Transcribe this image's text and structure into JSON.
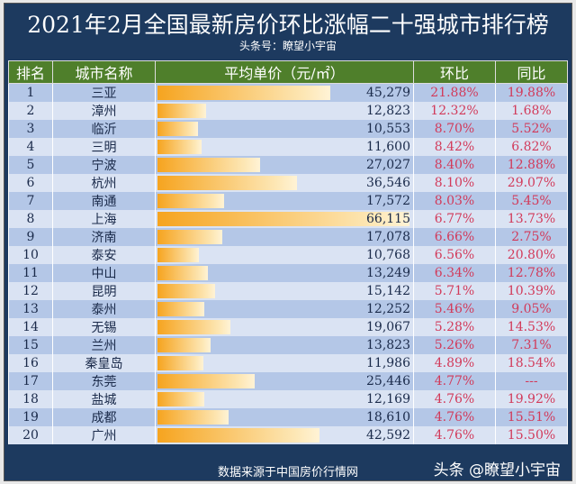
{
  "title": "2021年2月全国最新房价环比涨幅二十强城市排行榜",
  "subtitle": "头条号：瞭望小宇宙",
  "footer": {
    "source": "数据来源于中国房价行情网",
    "watermark": "头条 @瞭望小宇宙"
  },
  "colors": {
    "title_bg": "#1d3a5f",
    "header_bg": "#4f7f2b",
    "row_odd": "#b4c7e7",
    "row_even": "#dae3f3",
    "bar": "#f6a41f",
    "pct_text": "#d23a5a"
  },
  "chart_data": {
    "type": "table",
    "columns": [
      "排名",
      "城市名称",
      "平均单价（元/㎡）",
      "环比",
      "同比"
    ],
    "bar_column": "平均单价（元/㎡）",
    "rows": [
      [
        "1",
        "三亚",
        "45,279",
        "21.88%",
        "19.88%"
      ],
      [
        "2",
        "漳州",
        "12,823",
        "12.32%",
        "1.68%"
      ],
      [
        "3",
        "临沂",
        "10,553",
        "8.70%",
        "5.52%"
      ],
      [
        "4",
        "三明",
        "11,600",
        "8.42%",
        "6.82%"
      ],
      [
        "5",
        "宁波",
        "27,027",
        "8.40%",
        "12.88%"
      ],
      [
        "6",
        "杭州",
        "36,546",
        "8.10%",
        "29.07%"
      ],
      [
        "7",
        "南通",
        "17,572",
        "8.03%",
        "5.45%"
      ],
      [
        "8",
        "上海",
        "66,115",
        "6.77%",
        "13.73%"
      ],
      [
        "9",
        "济南",
        "17,078",
        "6.66%",
        "2.75%"
      ],
      [
        "10",
        "泰安",
        "10,768",
        "6.56%",
        "20.80%"
      ],
      [
        "11",
        "中山",
        "13,249",
        "6.34%",
        "12.78%"
      ],
      [
        "12",
        "昆明",
        "15,142",
        "5.71%",
        "10.39%"
      ],
      [
        "13",
        "泰州",
        "12,252",
        "5.46%",
        "9.05%"
      ],
      [
        "14",
        "无锡",
        "19,067",
        "5.28%",
        "14.53%"
      ],
      [
        "15",
        "兰州",
        "13,823",
        "5.26%",
        "7.31%"
      ],
      [
        "16",
        "秦皇岛",
        "11,986",
        "4.89%",
        "18.54%"
      ],
      [
        "17",
        "东莞",
        "25,446",
        "4.77%",
        "---"
      ],
      [
        "18",
        "盐城",
        "12,169",
        "4.76%",
        "19.92%"
      ],
      [
        "19",
        "成都",
        "18,610",
        "4.76%",
        "15.51%"
      ],
      [
        "20",
        "广州",
        "42,592",
        "4.76%",
        "15.50%"
      ]
    ]
  }
}
